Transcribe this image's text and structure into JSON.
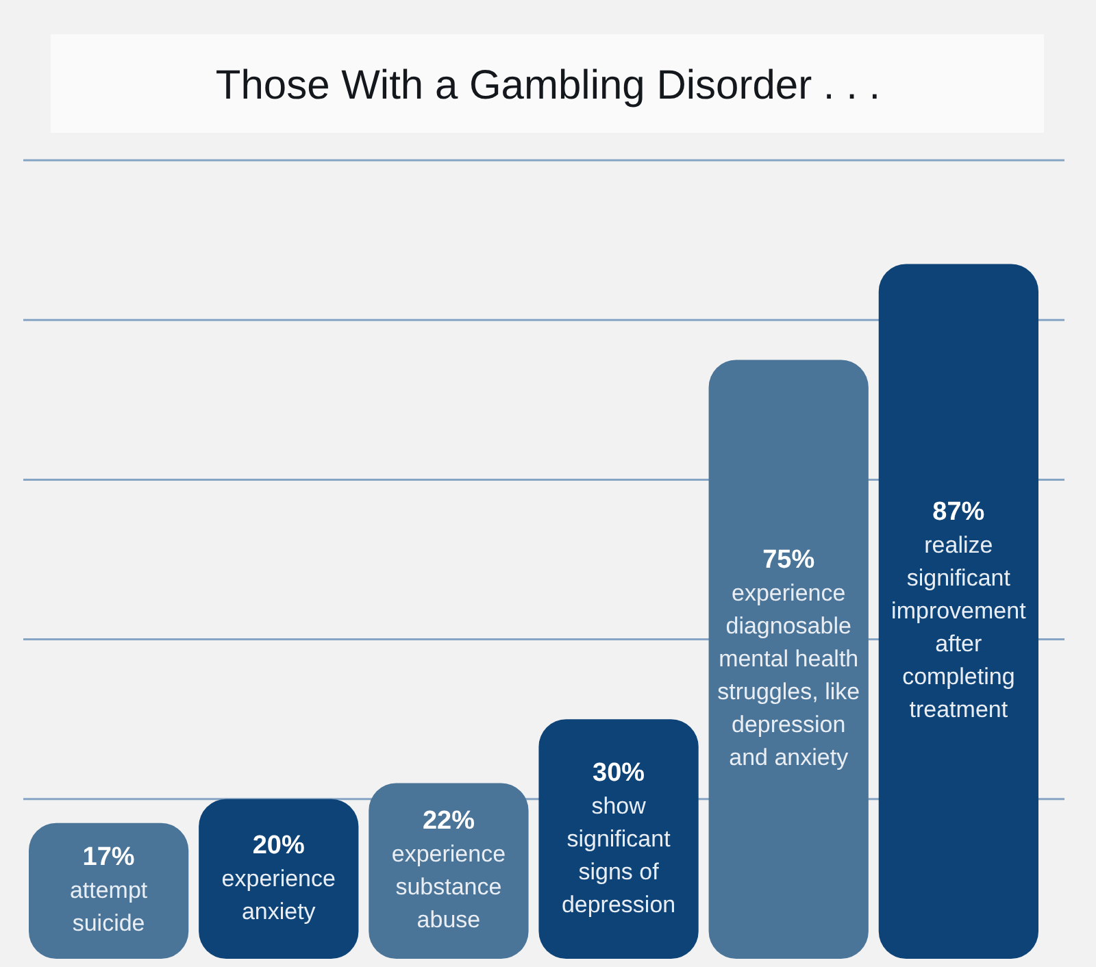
{
  "chart_data": {
    "type": "bar",
    "title": "Those With a Gambling Disorder . . .",
    "categories": [
      "attempt suicide",
      "experience anxiety",
      "experience substance abuse",
      "show significant signs of depression",
      "experience diagnosable mental health struggles, like depression and anxiety",
      "realize significant improvement after completing treatment"
    ],
    "values": [
      17,
      20,
      22,
      30,
      75,
      87
    ],
    "colors": [
      "#4b7598",
      "#0e4377",
      "#4b7598",
      "#0e4377",
      "#4b7598",
      "#0e4377"
    ],
    "value_labels": [
      "17%",
      "20%",
      "22%",
      "30%",
      "75%",
      "87%"
    ],
    "ylim": [
      0,
      100
    ],
    "yticks": [
      {
        "value": 20,
        "label": null
      },
      {
        "value": 40,
        "label": null
      },
      {
        "value": 60,
        "label": null
      },
      {
        "value": 80,
        "label": null
      },
      {
        "value": 100,
        "label": null
      }
    ],
    "grid": "y"
  }
}
